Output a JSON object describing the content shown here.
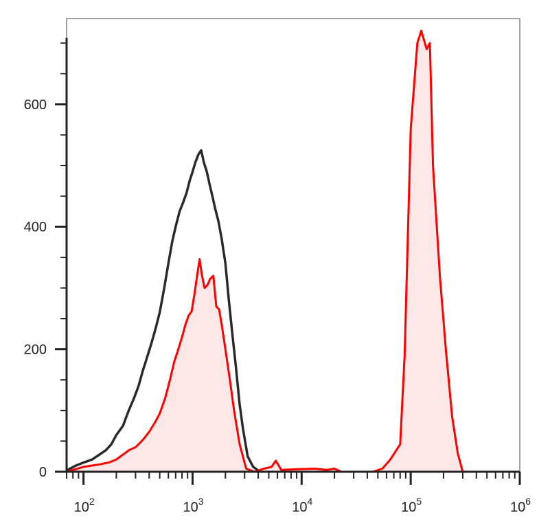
{
  "chart_data": {
    "type": "area",
    "title": "",
    "xlabel": "",
    "ylabel": "",
    "x_scale": "log",
    "xlim": [
      70,
      1000000
    ],
    "ylim": [
      0,
      740
    ],
    "x_ticks": [
      {
        "value": 100,
        "base": "10",
        "exp": "2"
      },
      {
        "value": 1000,
        "base": "10",
        "exp": "3"
      },
      {
        "value": 10000,
        "base": "10",
        "exp": "4"
      },
      {
        "value": 100000,
        "base": "10",
        "exp": "5"
      },
      {
        "value": 1000000,
        "base": "10",
        "exp": "6"
      }
    ],
    "y_ticks": [
      {
        "value": 0,
        "label": "0"
      },
      {
        "value": 200,
        "label": "200"
      },
      {
        "value": 400,
        "label": "400"
      },
      {
        "value": 600,
        "label": "600"
      }
    ],
    "grid": false,
    "legend": "none",
    "series": [
      {
        "color": "#2a2a2a",
        "fill": "none",
        "points": [
          [
            70,
            2
          ],
          [
            85,
            10
          ],
          [
            100,
            15
          ],
          [
            120,
            20
          ],
          [
            140,
            28
          ],
          [
            160,
            35
          ],
          [
            180,
            45
          ],
          [
            200,
            60
          ],
          [
            230,
            75
          ],
          [
            260,
            100
          ],
          [
            290,
            120
          ],
          [
            320,
            140
          ],
          [
            350,
            165
          ],
          [
            380,
            185
          ],
          [
            420,
            210
          ],
          [
            460,
            235
          ],
          [
            500,
            260
          ],
          [
            550,
            300
          ],
          [
            600,
            340
          ],
          [
            650,
            375
          ],
          [
            700,
            400
          ],
          [
            760,
            425
          ],
          [
            820,
            440
          ],
          [
            880,
            455
          ],
          [
            940,
            475
          ],
          [
            1000,
            490
          ],
          [
            1060,
            505
          ],
          [
            1130,
            518
          ],
          [
            1200,
            525
          ],
          [
            1270,
            505
          ],
          [
            1350,
            490
          ],
          [
            1430,
            470
          ],
          [
            1520,
            450
          ],
          [
            1610,
            430
          ],
          [
            1720,
            410
          ],
          [
            1850,
            380
          ],
          [
            2000,
            340
          ],
          [
            2150,
            280
          ],
          [
            2300,
            230
          ],
          [
            2500,
            170
          ],
          [
            2700,
            110
          ],
          [
            2900,
            70
          ],
          [
            3200,
            25
          ],
          [
            3600,
            8
          ],
          [
            4000,
            2
          ]
        ]
      },
      {
        "color": "#ff0000",
        "fill": "#fde7e7",
        "points": [
          [
            70,
            0
          ],
          [
            100,
            8
          ],
          [
            140,
            12
          ],
          [
            170,
            15
          ],
          [
            200,
            20
          ],
          [
            230,
            28
          ],
          [
            260,
            35
          ],
          [
            300,
            40
          ],
          [
            350,
            52
          ],
          [
            400,
            65
          ],
          [
            450,
            80
          ],
          [
            500,
            95
          ],
          [
            560,
            120
          ],
          [
            620,
            150
          ],
          [
            680,
            180
          ],
          [
            740,
            200
          ],
          [
            800,
            220
          ],
          [
            860,
            240
          ],
          [
            920,
            255
          ],
          [
            980,
            262
          ],
          [
            1040,
            290
          ],
          [
            1100,
            320
          ],
          [
            1160,
            347
          ],
          [
            1220,
            320
          ],
          [
            1290,
            300
          ],
          [
            1370,
            305
          ],
          [
            1450,
            315
          ],
          [
            1550,
            320
          ],
          [
            1650,
            270
          ],
          [
            1750,
            265
          ],
          [
            1850,
            240
          ],
          [
            2000,
            200
          ],
          [
            2200,
            150
          ],
          [
            2400,
            100
          ],
          [
            2700,
            45
          ],
          [
            3100,
            5
          ],
          [
            3700,
            0
          ],
          [
            4500,
            5
          ],
          [
            5300,
            8
          ],
          [
            5800,
            18
          ],
          [
            6500,
            3
          ],
          [
            9000,
            4
          ],
          [
            13000,
            5
          ],
          [
            17000,
            3
          ],
          [
            20000,
            5
          ],
          [
            23000,
            0
          ],
          [
            45000,
            0
          ],
          [
            55000,
            5
          ],
          [
            65000,
            20
          ],
          [
            80000,
            45
          ],
          [
            88000,
            190
          ],
          [
            100000,
            560
          ],
          [
            115000,
            700
          ],
          [
            125000,
            720
          ],
          [
            140000,
            690
          ],
          [
            150000,
            700
          ],
          [
            160000,
            500
          ],
          [
            185000,
            320
          ],
          [
            210000,
            200
          ],
          [
            240000,
            90
          ],
          [
            270000,
            30
          ],
          [
            300000,
            0
          ]
        ]
      }
    ]
  }
}
